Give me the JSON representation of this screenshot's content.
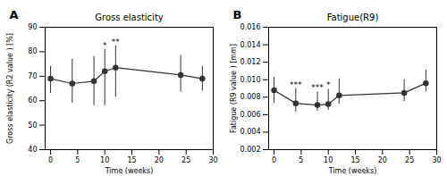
{
  "chart_data": [
    {
      "type": "line",
      "panel_label": "A",
      "title": "Gross elasticity",
      "xlabel": "Time (weeks)",
      "ylabel": "Gross elasticity (R2 value ) [%]",
      "x": [
        0,
        4,
        8,
        10,
        12,
        24,
        28
      ],
      "values": [
        69,
        67,
        68,
        72,
        73.5,
        70.5,
        69
      ],
      "yerr_upper": [
        5,
        10,
        10,
        9,
        9,
        8,
        5
      ],
      "yerr_lower": [
        6,
        8,
        10,
        14,
        12,
        7,
        5
      ],
      "color": "#333333",
      "marker": "circle",
      "xlim": [
        -1,
        30
      ],
      "xticks": [
        0,
        5,
        10,
        15,
        20,
        25,
        30
      ],
      "ylim": [
        40,
        90
      ],
      "yticks": [
        40,
        50,
        60,
        70,
        80,
        90
      ],
      "annotations": [
        {
          "x": 10,
          "y": 81.5,
          "text": "*"
        },
        {
          "x": 12,
          "y": 83,
          "text": "**"
        }
      ]
    },
    {
      "type": "line",
      "panel_label": "B",
      "title": "Fatigue(R9)",
      "xlabel": "Time (weeks)",
      "ylabel": "Fatigue (R9 value ) [mm]",
      "x": [
        0,
        4,
        8,
        10,
        12,
        24,
        28
      ],
      "values": [
        0.0088,
        0.0073,
        0.0071,
        0.0072,
        0.0082,
        0.0085,
        0.0096
      ],
      "yerr_upper": [
        0.0015,
        0.0017,
        0.0015,
        0.0017,
        0.0019,
        0.0015,
        0.0015
      ],
      "yerr_lower": [
        0.0015,
        0.001,
        0.0007,
        0.0007,
        0.001,
        0.001,
        0.001
      ],
      "color": "#333333",
      "marker": "circle",
      "xlim": [
        -1,
        30
      ],
      "xticks": [
        0,
        5,
        10,
        15,
        20,
        25,
        30
      ],
      "ylim": [
        0.002,
        0.016
      ],
      "yticks": [
        0.002,
        0.004,
        0.006,
        0.008,
        {
          "value": 0.01,
          "label": "0.010"
        },
        0.012,
        0.014,
        0.016
      ],
      "annotations": [
        {
          "x": 4,
          "y": 0.0091,
          "text": "***"
        },
        {
          "x": 8,
          "y": 0.0088,
          "text": "***"
        },
        {
          "x": 10,
          "y": 0.0091,
          "text": "*"
        }
      ]
    }
  ]
}
